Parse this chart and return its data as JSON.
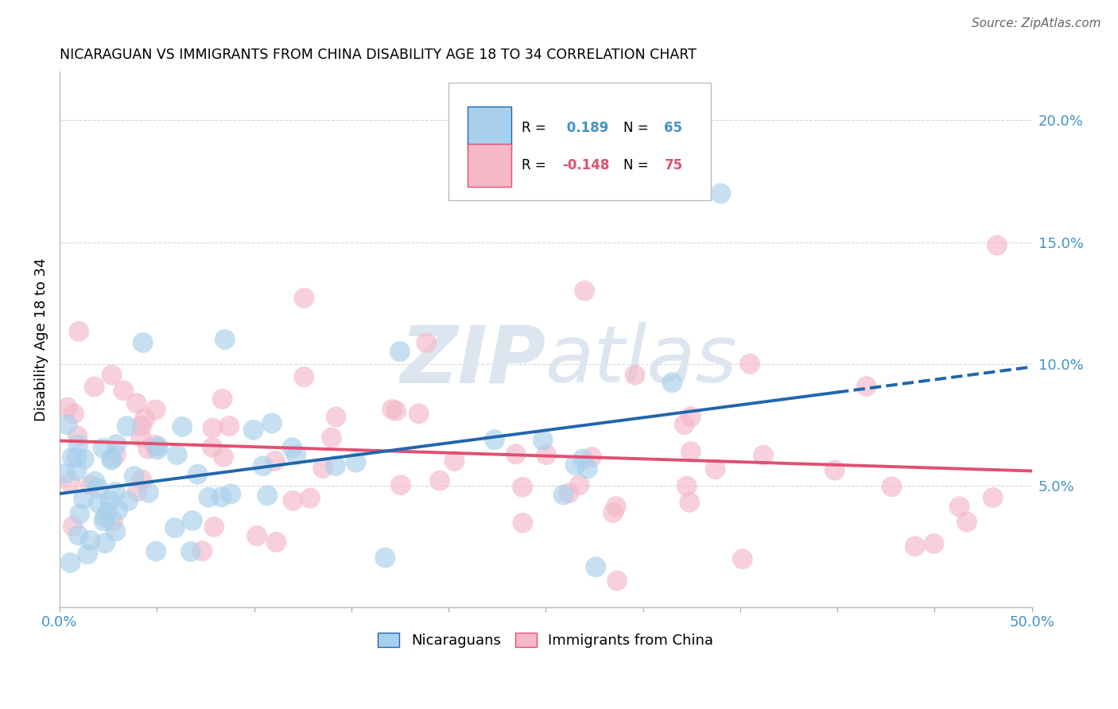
{
  "title": "NICARAGUAN VS IMMIGRANTS FROM CHINA DISABILITY AGE 18 TO 34 CORRELATION CHART",
  "source": "Source: ZipAtlas.com",
  "ylabel": "Disability Age 18 to 34",
  "xmin": 0.0,
  "xmax": 0.5,
  "ymin": 0.0,
  "ymax": 0.22,
  "yticks": [
    0.05,
    0.1,
    0.15,
    0.2
  ],
  "ytick_labels": [
    "5.0%",
    "10.0%",
    "15.0%",
    "20.0%"
  ],
  "xticks": [
    0.0,
    0.05,
    0.1,
    0.15,
    0.2,
    0.25,
    0.3,
    0.35,
    0.4,
    0.45,
    0.5
  ],
  "xtick_labels": [
    "0.0%",
    "",
    "",
    "",
    "",
    "",
    "",
    "",
    "",
    "",
    "50.0%"
  ],
  "r_nicaraguan": 0.189,
  "n_nicaraguan": 65,
  "r_china": -0.148,
  "n_china": 75,
  "color_nicaraguan": "#a8d0ec",
  "color_china": "#f4b8c8",
  "color_line_nicaraguan": "#2166ac",
  "color_line_china": "#e05070",
  "background_color": "#ffffff",
  "grid_color": "#d8d8d8",
  "watermark_color": "#dde6f0",
  "legend_box_color": "#aaaaaa",
  "tick_color": "#4393c3",
  "title_color": "#000000",
  "source_color": "#666666"
}
